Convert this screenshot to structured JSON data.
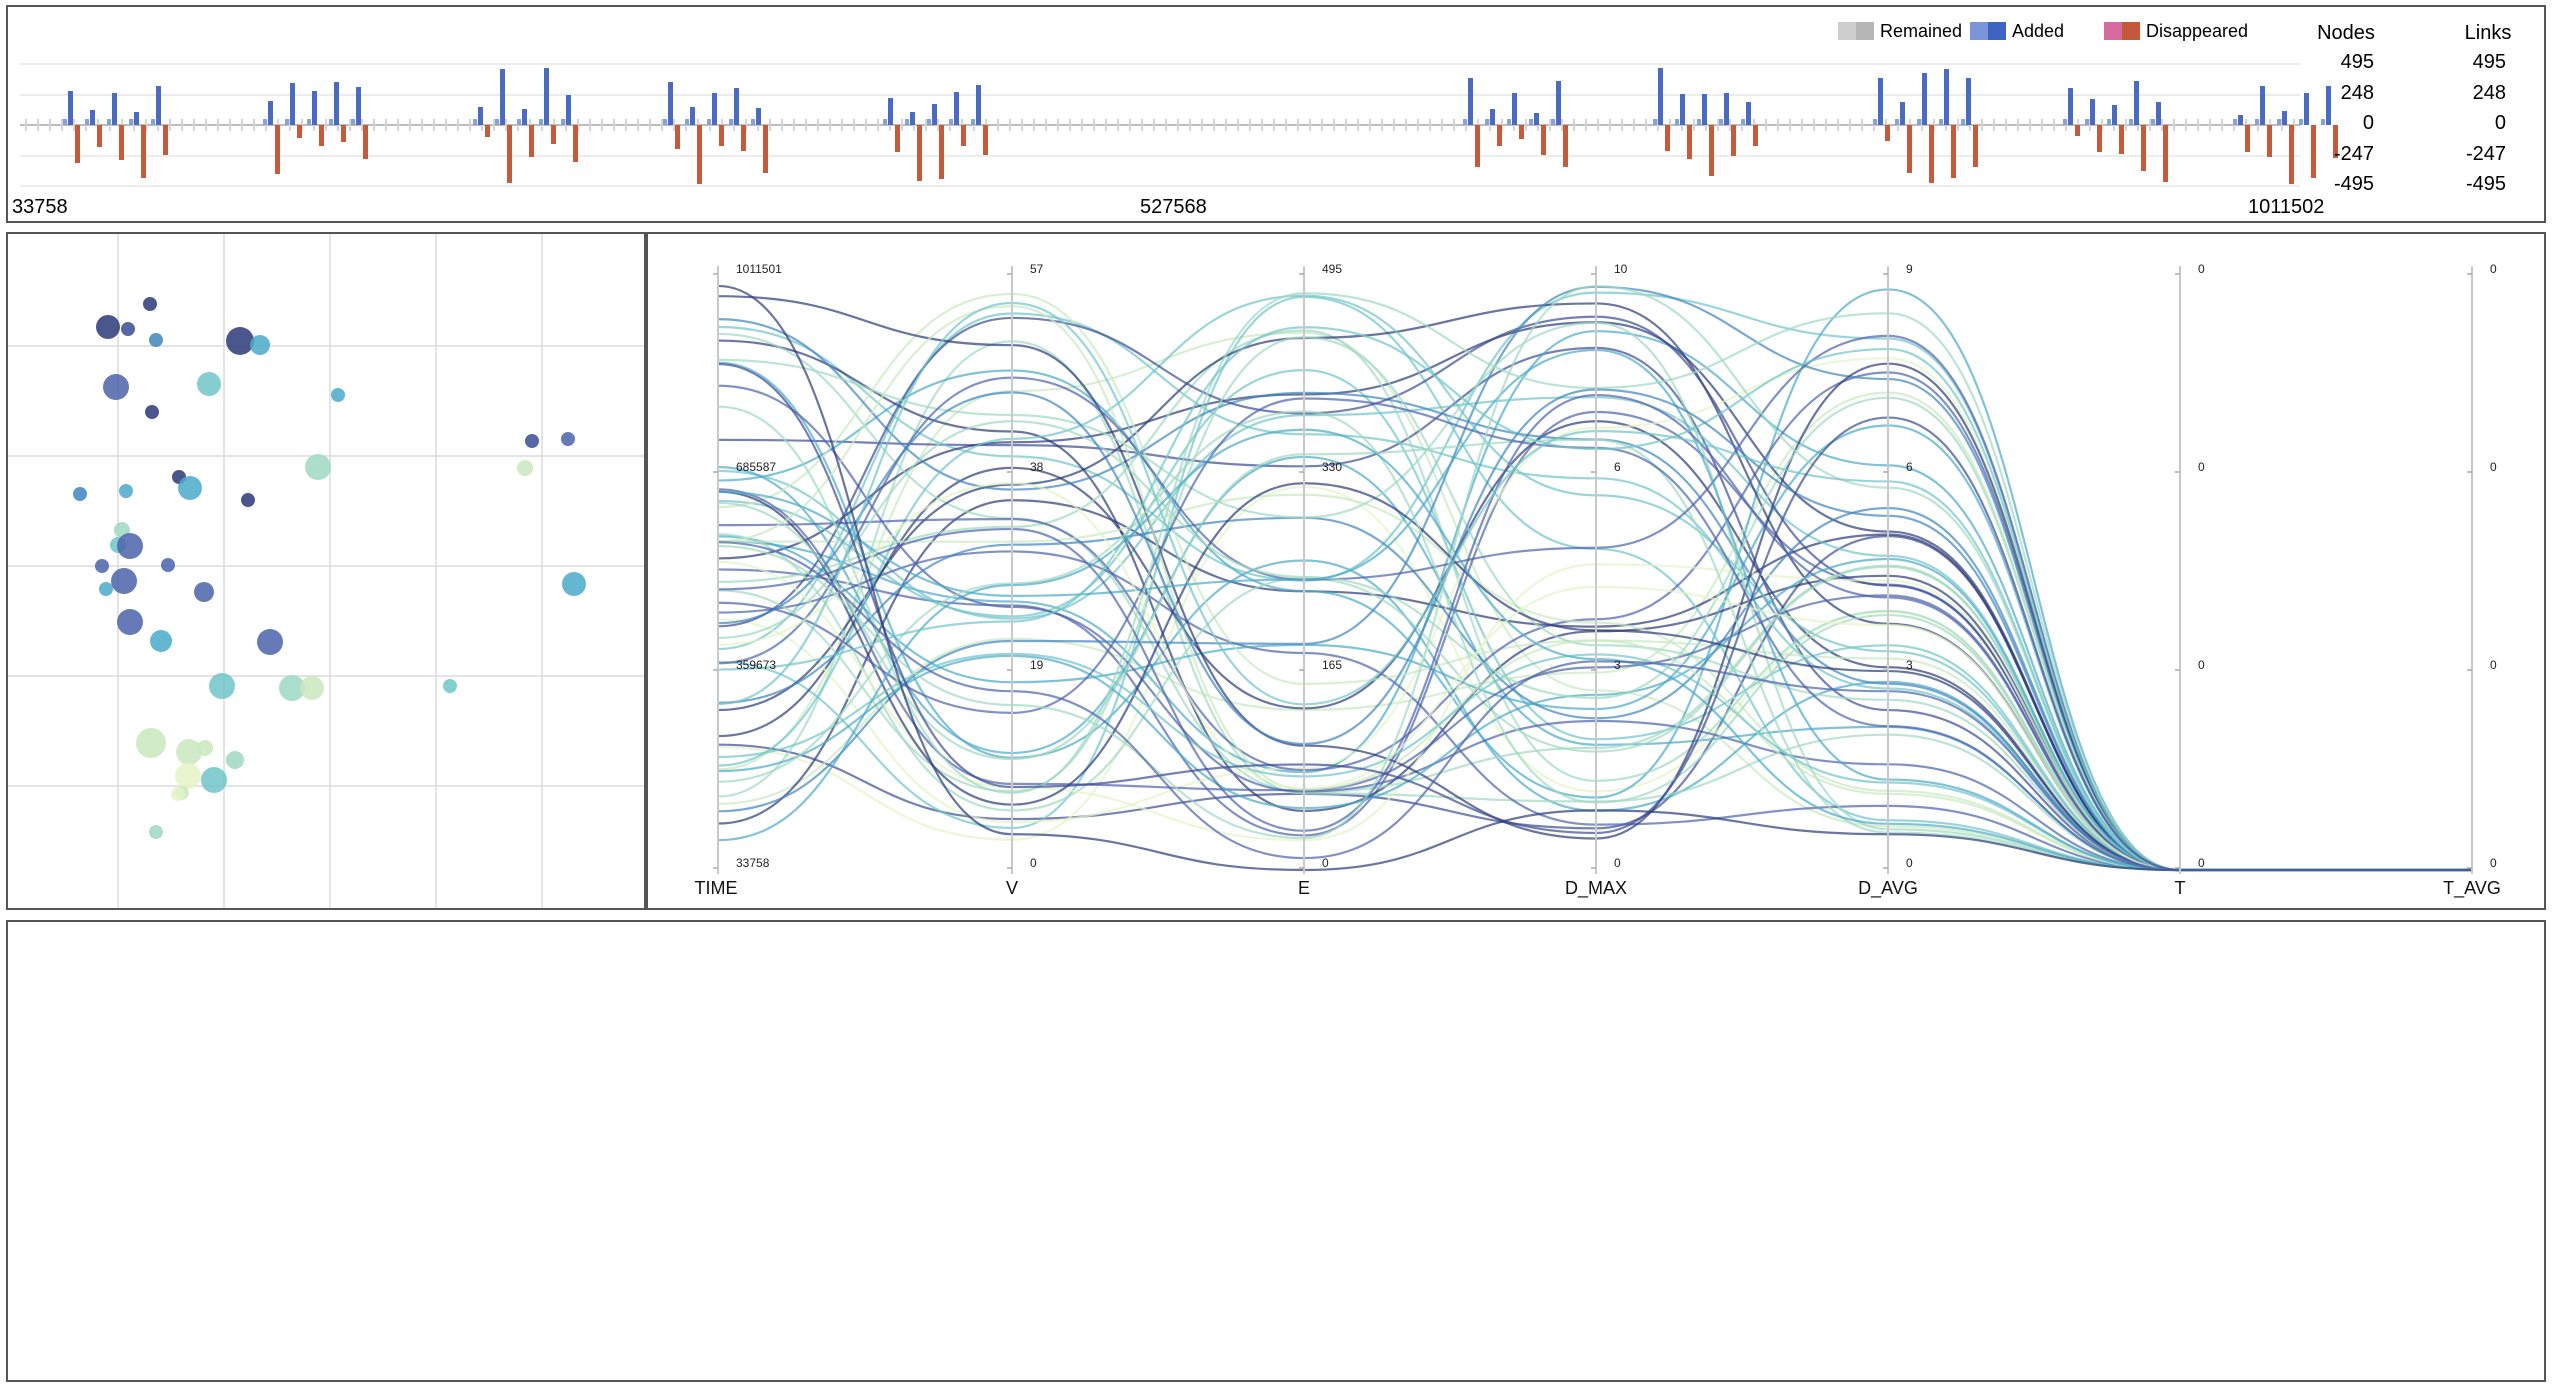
{
  "timeline": {
    "legend": [
      {
        "label": "Remained",
        "colors": [
          "#cfcfcf",
          "#b5b5b5"
        ]
      },
      {
        "label": "Added",
        "colors": [
          "#7b95d8",
          "#3f63c0"
        ]
      },
      {
        "label": "Disappeared",
        "colors": [
          "#d86aa0",
          "#c4583a"
        ]
      }
    ],
    "time_labels": [
      "33758",
      "527568",
      "1011502"
    ],
    "columns": [
      {
        "header": "Nodes",
        "values": [
          "495",
          "248",
          "0",
          "-247",
          "-495"
        ]
      },
      {
        "header": "Links",
        "values": [
          "495",
          "248",
          "0",
          "-247",
          "-495"
        ]
      }
    ],
    "colors": {
      "added": "#4a6bc2",
      "removed": "#c65a3a",
      "remained": "#c8c8c8"
    }
  },
  "parallel": {
    "axes": [
      {
        "name": "TIME",
        "ticks": [
          "1011501",
          "685587",
          "359673",
          "33758"
        ]
      },
      {
        "name": "V",
        "ticks": [
          "57",
          "38",
          "19",
          "0"
        ]
      },
      {
        "name": "E",
        "ticks": [
          "495",
          "330",
          "165",
          "0"
        ]
      },
      {
        "name": "D_MAX",
        "ticks": [
          "10",
          "6",
          "3",
          "0"
        ]
      },
      {
        "name": "D_AVG",
        "ticks": [
          "9",
          "6",
          "3",
          "0"
        ]
      },
      {
        "name": "T",
        "ticks": [
          "0",
          "0",
          "0",
          "0"
        ]
      },
      {
        "name": "T_AVG",
        "ticks": [
          "0",
          "0",
          "0",
          "0"
        ]
      }
    ]
  },
  "palette": [
    "#e4f3c6",
    "#c9e8c0",
    "#9fd8c2",
    "#6fc5c9",
    "#4aa9c9",
    "#3f85bd",
    "#4b63ab",
    "#3a4c93",
    "#2b3a78"
  ]
}
